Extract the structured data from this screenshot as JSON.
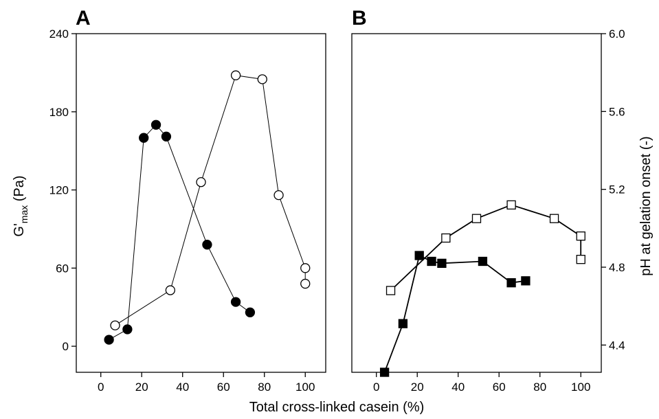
{
  "figure": {
    "panel_a_letter": "A",
    "panel_b_letter": "B",
    "shared_xlabel": "Total cross-linked casein (%)"
  },
  "chart_data": [
    {
      "type": "line",
      "panel": "A",
      "xlabel": "Total cross-linked casein (%)",
      "ylabel": "G'max (Pa)",
      "ylabel_main": "G'",
      "ylabel_sub": "max",
      "ylabel_unit": " (Pa)",
      "xlim": [
        -12,
        110
      ],
      "ylim": [
        -20,
        240
      ],
      "xticks": [
        0,
        20,
        40,
        60,
        80,
        100
      ],
      "yticks": [
        0,
        60,
        120,
        180,
        240
      ],
      "grid": false,
      "series": [
        {
          "marker": "circle-filled",
          "color": "#000000",
          "x": [
            4,
            13,
            21,
            27,
            32,
            52,
            66,
            73
          ],
          "y": [
            5,
            13,
            160,
            170,
            161,
            78,
            34,
            26
          ]
        },
        {
          "marker": "circle-open",
          "color": "#000000",
          "x": [
            7,
            34,
            49,
            66,
            79,
            87,
            100,
            100
          ],
          "y": [
            16,
            43,
            126,
            208,
            205,
            116,
            60,
            48
          ]
        }
      ]
    },
    {
      "type": "line",
      "panel": "B",
      "xlabel": "Total cross-linked casein (%)",
      "ylabel": "pH at gelation onset (-)",
      "xlim": [
        -12,
        110
      ],
      "ylim": [
        4.26,
        6.0
      ],
      "xticks": [
        0,
        20,
        40,
        60,
        80,
        100
      ],
      "yticks": [
        4.4,
        4.8,
        5.2,
        5.6,
        6.0
      ],
      "ytick_labels": [
        "4.4",
        "4.8",
        "5.2",
        "5.6",
        "6.0"
      ],
      "grid": false,
      "series": [
        {
          "marker": "square-filled",
          "color": "#000000",
          "x": [
            4,
            13,
            21,
            27,
            32,
            52,
            66,
            73
          ],
          "y": [
            4.26,
            4.51,
            4.86,
            4.83,
            4.82,
            4.83,
            4.72,
            4.73
          ]
        },
        {
          "marker": "square-open",
          "color": "#000000",
          "x": [
            7,
            34,
            49,
            66,
            87,
            100,
            100
          ],
          "y": [
            4.68,
            4.95,
            5.05,
            5.12,
            5.05,
            4.96,
            4.84
          ]
        }
      ]
    }
  ]
}
